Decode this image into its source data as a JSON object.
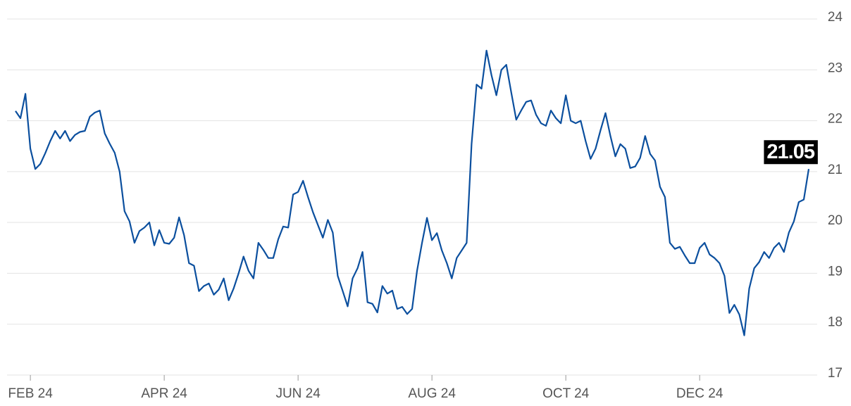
{
  "chart_data": {
    "type": "line",
    "categories": [
      null,
      null,
      null,
      "FEB 24",
      null,
      null,
      null,
      null,
      null,
      null,
      null,
      null,
      null,
      null,
      null,
      null,
      null,
      null,
      null,
      null,
      null,
      null,
      null,
      null,
      null,
      null,
      null,
      null,
      null,
      null,
      "APR 24",
      null,
      null,
      null,
      null,
      null,
      null,
      null,
      null,
      null,
      null,
      null,
      null,
      null,
      null,
      null,
      null,
      null,
      null,
      null,
      null,
      null,
      null,
      null,
      null,
      null,
      null,
      "JUN 24",
      null,
      null,
      null,
      null,
      null,
      null,
      null,
      null,
      null,
      null,
      null,
      null,
      null,
      null,
      null,
      null,
      null,
      null,
      null,
      null,
      null,
      null,
      null,
      null,
      null,
      null,
      "AUG 24",
      null,
      null,
      null,
      null,
      null,
      null,
      null,
      null,
      null,
      null,
      null,
      null,
      null,
      null,
      null,
      null,
      null,
      null,
      null,
      null,
      null,
      null,
      null,
      null,
      null,
      null,
      "OCT 24",
      null,
      null,
      null,
      null,
      null,
      null,
      null,
      null,
      null,
      null,
      null,
      null,
      null,
      null,
      null,
      null,
      null,
      null,
      null,
      null,
      null,
      null,
      null,
      null,
      null,
      null,
      "DEC 24",
      null,
      null,
      null,
      null,
      null,
      null,
      null,
      null,
      null,
      null,
      null,
      null,
      null,
      null,
      null,
      null,
      null,
      null,
      null,
      null,
      null,
      null
    ],
    "series": [
      {
        "color": "#0b4f9e",
        "values": [
          22.19,
          22.05,
          22.53,
          21.45,
          21.05,
          21.15,
          21.36,
          21.6,
          21.8,
          21.65,
          21.8,
          21.6,
          21.72,
          21.78,
          21.8,
          22.08,
          22.16,
          22.2,
          21.75,
          21.55,
          21.37,
          21.0,
          20.22,
          20.02,
          19.6,
          19.83,
          19.9,
          20.0,
          19.55,
          19.85,
          19.6,
          19.58,
          19.7,
          20.1,
          19.75,
          19.2,
          19.15,
          18.65,
          18.75,
          18.8,
          18.58,
          18.68,
          18.9,
          18.47,
          18.7,
          19.0,
          19.33,
          19.05,
          18.9,
          19.6,
          19.46,
          19.3,
          19.3,
          19.67,
          19.92,
          19.9,
          20.55,
          20.6,
          20.82,
          20.5,
          20.2,
          19.95,
          19.7,
          20.05,
          19.8,
          18.95,
          18.65,
          18.35,
          18.9,
          19.1,
          19.42,
          18.43,
          18.4,
          18.23,
          18.75,
          18.6,
          18.66,
          18.3,
          18.34,
          18.2,
          18.3,
          19.05,
          19.6,
          20.09,
          19.65,
          19.79,
          19.45,
          19.2,
          18.9,
          19.3,
          19.45,
          19.6,
          21.54,
          22.71,
          22.63,
          23.38,
          22.9,
          22.5,
          23.0,
          23.1,
          22.55,
          22.02,
          22.2,
          22.37,
          22.4,
          22.12,
          21.95,
          21.9,
          22.2,
          22.05,
          21.95,
          22.5,
          22.0,
          21.95,
          22.0,
          21.6,
          21.25,
          21.45,
          21.81,
          22.15,
          21.7,
          21.3,
          21.54,
          21.45,
          21.07,
          21.1,
          21.27,
          21.7,
          21.35,
          21.22,
          20.7,
          20.5,
          19.6,
          19.48,
          19.52,
          19.35,
          19.2,
          19.2,
          19.5,
          19.6,
          19.37,
          19.3,
          19.2,
          18.95,
          18.22,
          18.38,
          18.19,
          17.78,
          18.7,
          19.1,
          19.22,
          19.42,
          19.3,
          19.5,
          19.6,
          19.42,
          19.8,
          20.02,
          20.4,
          20.45,
          21.05
        ]
      }
    ],
    "ylim": [
      17,
      24
    ],
    "yticks": [
      17,
      18,
      19,
      20,
      21,
      22,
      23,
      24
    ],
    "grid": true
  }
}
